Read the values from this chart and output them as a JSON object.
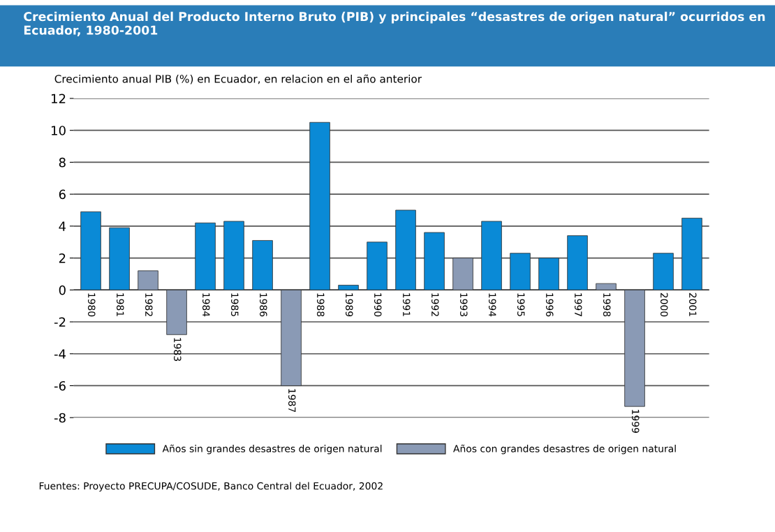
{
  "chart_data": {
    "type": "bar",
    "title": "Crecimiento Anual del Producto Interno Bruto (PIB) y principales “desastres de origen natural” ocurridos en Ecuador, 1980-2001",
    "ylabel": "Crecimiento anual PIB (%) en Ecuador, en relacion en el año anterior",
    "categories": [
      "1980",
      "1981",
      "1982",
      "1983",
      "1984",
      "1985",
      "1986",
      "1987",
      "1988",
      "1989",
      "1990",
      "1991",
      "1992",
      "1993",
      "1994",
      "1995",
      "1996",
      "1997",
      "1998",
      "1999",
      "2000",
      "2001"
    ],
    "series": [
      {
        "name": "Años sin grandes desastres de origen natural",
        "color": "#0a8ad6",
        "values": [
          4.9,
          3.9,
          null,
          null,
          4.2,
          4.3,
          3.1,
          null,
          10.5,
          0.3,
          3.0,
          5.0,
          3.6,
          null,
          4.3,
          2.3,
          2.0,
          3.4,
          null,
          null,
          2.3,
          4.5
        ]
      },
      {
        "name": "Años con grandes desastres de origen natural",
        "color": "#8a9ab5",
        "values": [
          null,
          null,
          1.2,
          -2.8,
          null,
          null,
          null,
          -6.0,
          null,
          null,
          null,
          null,
          null,
          2.0,
          null,
          null,
          null,
          null,
          0.4,
          -7.3,
          null,
          null
        ]
      }
    ],
    "ylim": [
      -8,
      12
    ],
    "yticks": [
      -8,
      -6,
      -4,
      -2,
      0,
      2,
      4,
      6,
      8,
      10,
      12
    ],
    "grid": "y",
    "legend": "bottom",
    "annotations": [
      "Fuentes: Proyecto PRECUPA/COSUDE, Banco Central del Ecuador, 2002"
    ]
  }
}
